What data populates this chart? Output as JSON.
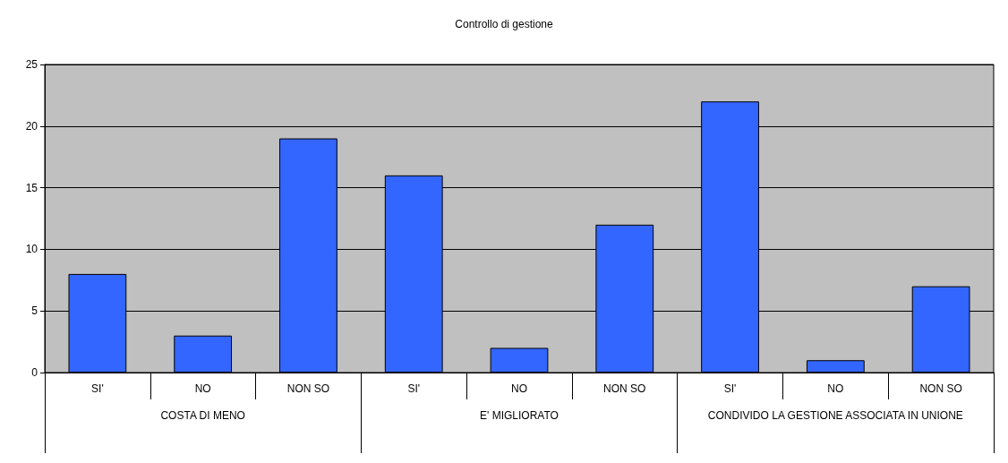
{
  "chart_data": {
    "type": "bar",
    "title": "Controllo di gestione",
    "categories": [
      "SI'",
      "NO",
      "NON SO",
      "SI'",
      "NO",
      "NON SO",
      "SI'",
      "NO",
      "NON SO"
    ],
    "values": [
      8,
      3,
      19,
      16,
      2,
      12,
      22,
      1,
      7
    ],
    "color": "#3366ff",
    "ylim": [
      0,
      25
    ],
    "yticks": [
      0,
      5,
      10,
      15,
      20,
      25
    ],
    "grid": "y",
    "annotations": [
      "COSTA DI MENO",
      "E' MIGLIORATO",
      "CONDIVIDO LA GESTIONE ASSOCIATA IN UNIONE"
    ]
  }
}
